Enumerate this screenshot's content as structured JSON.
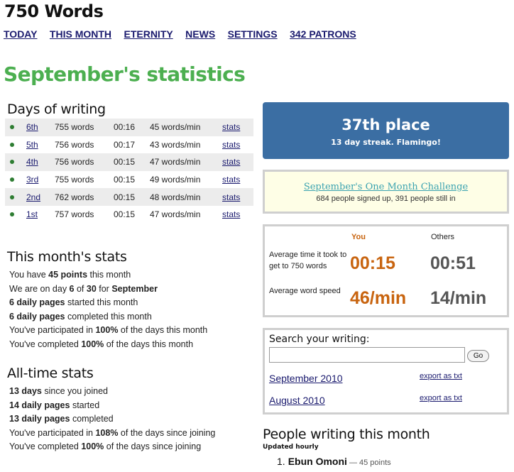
{
  "site": {
    "title": "750 Words"
  },
  "nav": [
    "TODAY",
    "THIS MONTH",
    "ETERNITY",
    "NEWS",
    "SETTINGS",
    "342 PATRONS"
  ],
  "page_heading": "September's statistics",
  "days_of_writing": {
    "heading": "Days of writing",
    "rows": [
      {
        "date": "6th",
        "words": "755 words",
        "time": "00:16",
        "speed": "45 words/min",
        "stats": "stats"
      },
      {
        "date": "5th",
        "words": "756 words",
        "time": "00:17",
        "speed": "43 words/min",
        "stats": "stats"
      },
      {
        "date": "4th",
        "words": "756 words",
        "time": "00:15",
        "speed": "47 words/min",
        "stats": "stats"
      },
      {
        "date": "3rd",
        "words": "755 words",
        "time": "00:15",
        "speed": "49 words/min",
        "stats": "stats"
      },
      {
        "date": "2nd",
        "words": "762 words",
        "time": "00:15",
        "speed": "48 words/min",
        "stats": "stats"
      },
      {
        "date": "1st",
        "words": "757 words",
        "time": "00:15",
        "speed": "47 words/min",
        "stats": "stats"
      }
    ]
  },
  "month_stats": {
    "heading": "This month's stats",
    "lines": [
      [
        "You have ",
        "45 points",
        " this month"
      ],
      [
        "We are on day ",
        "6",
        " of ",
        "30",
        " for ",
        "September"
      ],
      [
        "",
        "6 daily pages",
        " started this month"
      ],
      [
        "",
        "6 daily pages",
        " completed this month"
      ],
      [
        "You've participated in ",
        "100%",
        " of the days this month"
      ],
      [
        "You've completed ",
        "100%",
        " of the days this month"
      ]
    ]
  },
  "alltime_stats": {
    "heading": "All-time stats",
    "lines": [
      [
        "",
        "13 days",
        " since you joined"
      ],
      [
        "",
        "14 daily pages",
        " started"
      ],
      [
        "",
        "13 daily pages",
        " completed"
      ],
      [
        "You've participated in ",
        "108%",
        " of the days since joining"
      ],
      [
        "You've completed ",
        "100%",
        " of the days since joining"
      ]
    ]
  },
  "rank": {
    "place": "37th place",
    "streak": "13 day streak. Flamingo!"
  },
  "challenge": {
    "link": "September's One Month Challenge",
    "sub": "684 people signed up, 391 people still in"
  },
  "compare": {
    "you_label": "You",
    "others_label": "Others",
    "time_label": "Average time it took to get to 750 words",
    "you_time": "00:15",
    "others_time": "00:51",
    "speed_label": "Average word speed",
    "you_speed": "46/min",
    "others_speed": "14/min"
  },
  "search": {
    "title": "Search your writing:",
    "value": "",
    "go_label": "Go",
    "months": [
      {
        "name": "September 2010",
        "export": "export as txt"
      },
      {
        "name": "August 2010",
        "export": "export as txt"
      }
    ]
  },
  "people": {
    "heading": "People writing this month",
    "sub": "Updated hourly",
    "entries": [
      {
        "rank": "1.",
        "name": "Ebun Omoni",
        "points": " — 45 points"
      }
    ]
  },
  "colors": {
    "heading_green": "#4caf50",
    "rank_blue": "#3b6ea3",
    "you_orange": "#c8640f",
    "link": "#1a1a6e"
  }
}
